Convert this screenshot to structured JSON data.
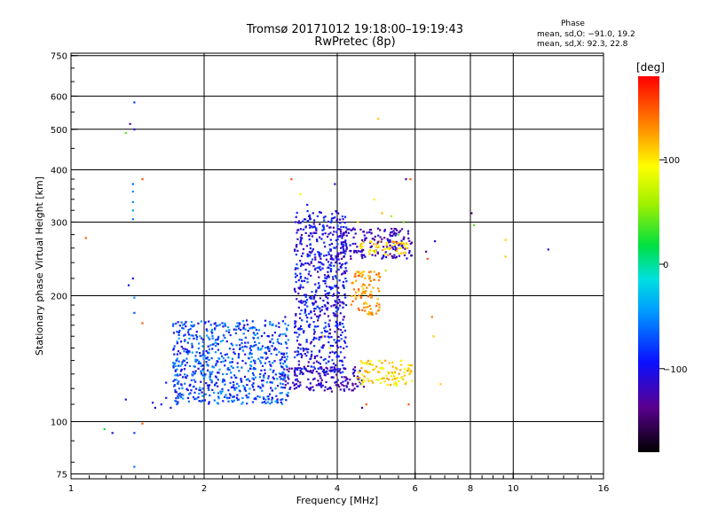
{
  "header": {
    "title_line1": "Tromsø 20171012 19:18:00–19:19:43",
    "title_line2": "RwPretec (8p)"
  },
  "phase_info": {
    "heading": "Phase",
    "o_line": "mean, sd,O: −91.0, 19.2",
    "x_line": "mean, sd,X:  92.3, 22.8"
  },
  "colorbar": {
    "unit": "[deg]",
    "ticks": [
      {
        "value": 100,
        "label": "100"
      },
      {
        "value": 0,
        "label": "0"
      },
      {
        "value": -100,
        "label": "−100"
      }
    ],
    "range": [
      -180,
      180
    ]
  },
  "chart_data": {
    "type": "scatter",
    "xlabel": "Frequency [MHz]",
    "ylabel": "Stationary phase Virtual Height [km]",
    "xscale": "log",
    "yscale": "log",
    "xlim": [
      1,
      16
    ],
    "ylim": [
      73,
      760
    ],
    "xticks": [
      1,
      2,
      4,
      6,
      8,
      10,
      16
    ],
    "xtick_labels": [
      "1",
      "2",
      "4",
      "6",
      "8",
      "10",
      "16"
    ],
    "yticks": [
      75,
      100,
      200,
      300,
      400,
      500,
      600,
      750
    ],
    "ytick_labels": [
      "75",
      "100",
      "200",
      "300",
      "400",
      "500",
      "600",
      "750"
    ],
    "grid": true,
    "color_by": "phase_deg",
    "points": [
      {
        "x": 1.08,
        "y": 275,
        "phase": 150
      },
      {
        "x": 1.19,
        "y": 96,
        "phase": 20
      },
      {
        "x": 1.24,
        "y": 94,
        "phase": -100
      },
      {
        "x": 1.33,
        "y": 490,
        "phase": 40
      },
      {
        "x": 1.36,
        "y": 515,
        "phase": -130
      },
      {
        "x": 1.39,
        "y": 580,
        "phase": -80
      },
      {
        "x": 1.39,
        "y": 500,
        "phase": -110
      },
      {
        "x": 1.38,
        "y": 370,
        "phase": -70
      },
      {
        "x": 1.38,
        "y": 355,
        "phase": -50
      },
      {
        "x": 1.38,
        "y": 335,
        "phase": -50
      },
      {
        "x": 1.38,
        "y": 320,
        "phase": -40
      },
      {
        "x": 1.38,
        "y": 305,
        "phase": -60
      },
      {
        "x": 1.38,
        "y": 220,
        "phase": -100
      },
      {
        "x": 1.35,
        "y": 212,
        "phase": -90
      },
      {
        "x": 1.39,
        "y": 198,
        "phase": -50
      },
      {
        "x": 1.39,
        "y": 182,
        "phase": -70
      },
      {
        "x": 1.39,
        "y": 94,
        "phase": -80
      },
      {
        "x": 1.39,
        "y": 78,
        "phase": -60
      },
      {
        "x": 1.33,
        "y": 113,
        "phase": -100
      },
      {
        "x": 1.45,
        "y": 380,
        "phase": 150
      },
      {
        "x": 1.45,
        "y": 172,
        "phase": 150
      },
      {
        "x": 1.45,
        "y": 99,
        "phase": 150
      },
      {
        "x": 1.53,
        "y": 111,
        "phase": -110
      },
      {
        "x": 1.55,
        "y": 108,
        "phase": -100
      },
      {
        "x": 1.6,
        "y": 110,
        "phase": -100
      },
      {
        "x": 1.64,
        "y": 114,
        "phase": -90
      },
      {
        "x": 1.64,
        "y": 124,
        "phase": -90
      },
      {
        "x": 1.68,
        "y": 108,
        "phase": -110
      },
      {
        "x": 1.72,
        "y": 119,
        "phase": -80
      },
      {
        "x": 1.78,
        "y": 116,
        "phase": -110
      },
      {
        "x": 1.86,
        "y": 117,
        "phase": -100
      },
      {
        "x": 1.95,
        "y": 119,
        "phase": -110
      },
      {
        "x": 2.05,
        "y": 122,
        "phase": -100
      },
      {
        "x": 2.15,
        "y": 126,
        "phase": -80
      },
      {
        "x": 2.25,
        "y": 130,
        "phase": -60
      },
      {
        "x": 2.38,
        "y": 135,
        "phase": -60
      },
      {
        "x": 2.52,
        "y": 142,
        "phase": -80
      },
      {
        "x": 2.65,
        "y": 150,
        "phase": -90
      },
      {
        "x": 2.8,
        "y": 160,
        "phase": -100
      },
      {
        "x": 2.95,
        "y": 172,
        "phase": -100
      },
      {
        "x": 3.05,
        "y": 178,
        "phase": -120
      },
      {
        "x": 3.15,
        "y": 380,
        "phase": 150
      },
      {
        "x": 3.22,
        "y": 300,
        "phase": -110
      },
      {
        "x": 3.3,
        "y": 350,
        "phase": 100
      },
      {
        "x": 3.42,
        "y": 330,
        "phase": -100
      },
      {
        "x": 3.6,
        "y": 270,
        "phase": -110
      },
      {
        "x": 3.7,
        "y": 160,
        "phase": 120
      },
      {
        "x": 3.85,
        "y": 150,
        "phase": 80
      },
      {
        "x": 3.95,
        "y": 370,
        "phase": -110
      },
      {
        "x": 4.1,
        "y": 275,
        "phase": -120
      },
      {
        "x": 4.35,
        "y": 290,
        "phase": -110
      },
      {
        "x": 4.45,
        "y": 300,
        "phase": 100
      },
      {
        "x": 4.55,
        "y": 108,
        "phase": -130
      },
      {
        "x": 4.65,
        "y": 110,
        "phase": 150
      },
      {
        "x": 4.85,
        "y": 340,
        "phase": 100
      },
      {
        "x": 4.95,
        "y": 530,
        "phase": 110
      },
      {
        "x": 5.05,
        "y": 315,
        "phase": 120
      },
      {
        "x": 5.15,
        "y": 230,
        "phase": 70
      },
      {
        "x": 5.3,
        "y": 310,
        "phase": 60
      },
      {
        "x": 5.5,
        "y": 280,
        "phase": 40
      },
      {
        "x": 5.65,
        "y": 300,
        "phase": 40
      },
      {
        "x": 5.72,
        "y": 380,
        "phase": -130
      },
      {
        "x": 5.85,
        "y": 380,
        "phase": 150
      },
      {
        "x": 5.8,
        "y": 110,
        "phase": 150
      },
      {
        "x": 5.9,
        "y": 125,
        "phase": 90
      },
      {
        "x": 6.35,
        "y": 255,
        "phase": -140
      },
      {
        "x": 6.4,
        "y": 245,
        "phase": 150
      },
      {
        "x": 6.55,
        "y": 178,
        "phase": 140
      },
      {
        "x": 6.6,
        "y": 160,
        "phase": 110
      },
      {
        "x": 6.65,
        "y": 270,
        "phase": -110
      },
      {
        "x": 6.85,
        "y": 123,
        "phase": 110
      },
      {
        "x": 8.05,
        "y": 315,
        "phase": -150
      },
      {
        "x": 8.15,
        "y": 295,
        "phase": 40
      },
      {
        "x": 9.6,
        "y": 272,
        "phase": 110
      },
      {
        "x": 9.6,
        "y": 248,
        "phase": 110
      },
      {
        "x": 12.0,
        "y": 258,
        "phase": -110
      }
    ],
    "dense_regions": [
      {
        "name": "F-layer O-mode cloud",
        "x_range": [
          3.2,
          4.2
        ],
        "y_range": [
          130,
          320
        ],
        "phase_range": [
          -130,
          -70
        ]
      },
      {
        "name": "Upper O-mode band",
        "x_range": [
          4.0,
          5.9
        ],
        "y_range": [
          245,
          290
        ],
        "phase_range": [
          -140,
          -100
        ]
      },
      {
        "name": "Upper X-mode band",
        "x_range": [
          4.4,
          5.8
        ],
        "y_range": [
          250,
          270
        ],
        "phase_range": [
          90,
          130
        ]
      },
      {
        "name": "Middle X-mode cluster",
        "x_range": [
          4.3,
          5.0
        ],
        "y_range": [
          180,
          230
        ],
        "phase_range": [
          110,
          150
        ]
      },
      {
        "name": "Low O-mode trace",
        "x_range": [
          3.0,
          4.6
        ],
        "y_range": [
          118,
          135
        ],
        "phase_range": [
          -140,
          -100
        ]
      },
      {
        "name": "Low X-mode trace",
        "x_range": [
          4.4,
          5.9
        ],
        "y_range": [
          122,
          140
        ],
        "phase_range": [
          80,
          130
        ]
      },
      {
        "name": "E-region rising trace",
        "x_range": [
          1.7,
          3.1
        ],
        "y_range": [
          110,
          175
        ],
        "phase_range": [
          -110,
          -40
        ]
      }
    ]
  }
}
